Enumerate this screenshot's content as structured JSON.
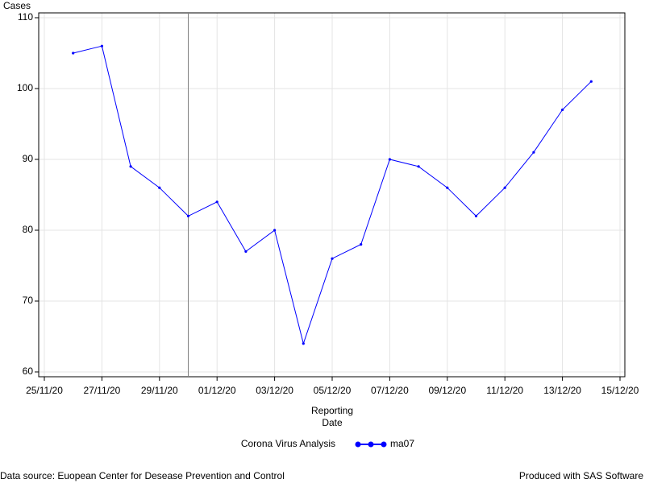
{
  "chart_data": {
    "type": "line",
    "y_label": "Cases",
    "x_label": [
      "Reporting",
      "Date"
    ],
    "legend_title": "Corona Virus Analysis",
    "footnote_left": "Data source: Euopean Center for Desease Prevention and Control",
    "footnote_right": "Produced with SAS Software",
    "x": [
      "2020-11-26",
      "2020-11-27",
      "2020-11-28",
      "2020-11-29",
      "2020-11-30",
      "2020-12-01",
      "2020-12-02",
      "2020-12-03",
      "2020-12-04",
      "2020-12-05",
      "2020-12-06",
      "2020-12-07",
      "2020-12-08",
      "2020-12-09",
      "2020-12-10",
      "2020-12-11",
      "2020-12-12",
      "2020-12-13",
      "2020-12-14"
    ],
    "series": [
      {
        "name": "ma07",
        "color": "#0000ff",
        "values": [
          105,
          106,
          89,
          86,
          82,
          84,
          77,
          80,
          64,
          76,
          78,
          90,
          89,
          86,
          82,
          86,
          91,
          97,
          101
        ]
      }
    ],
    "xlim": [
      "2020-11-25",
      "2020-12-15"
    ],
    "xticks": [
      {
        "value": "2020-11-25",
        "label": "25/11/20"
      },
      {
        "value": "2020-11-27",
        "label": "27/11/20"
      },
      {
        "value": "2020-11-29",
        "label": "29/11/20"
      },
      {
        "value": "2020-12-01",
        "label": "01/12/20"
      },
      {
        "value": "2020-12-03",
        "label": "03/12/20"
      },
      {
        "value": "2020-12-05",
        "label": "05/12/20"
      },
      {
        "value": "2020-12-07",
        "label": "07/12/20"
      },
      {
        "value": "2020-12-09",
        "label": "09/12/20"
      },
      {
        "value": "2020-12-11",
        "label": "11/12/20"
      },
      {
        "value": "2020-12-13",
        "label": "13/12/20"
      },
      {
        "value": "2020-12-15",
        "label": "15/12/20"
      }
    ],
    "ylim": [
      60,
      110
    ],
    "yticks": [
      60,
      70,
      80,
      90,
      100,
      110
    ],
    "grid": true,
    "refline": "2020-11-30"
  }
}
